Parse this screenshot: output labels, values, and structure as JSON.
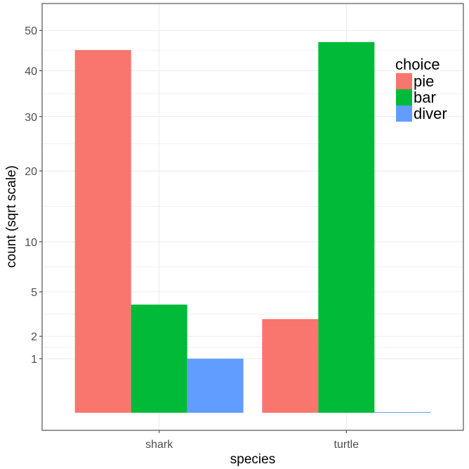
{
  "chart_data": {
    "type": "bar",
    "xlabel": "species",
    "ylabel": "count (sqrt scale)",
    "categories": [
      "shark",
      "turtle"
    ],
    "series": [
      {
        "name": "pie",
        "values": [
          45,
          3
        ],
        "color": "#F8766D"
      },
      {
        "name": "bar",
        "values": [
          4,
          47
        ],
        "color": "#00BA38"
      },
      {
        "name": "diver",
        "values": [
          1,
          0
        ],
        "color": "#619CFF"
      }
    ],
    "y_scale": "sqrt",
    "ylim": [
      0,
      51
    ],
    "y_ticks": [
      1,
      2,
      5,
      10,
      20,
      30,
      40,
      50
    ],
    "legend": {
      "title": "choice",
      "position": "top-right"
    },
    "grid": true
  }
}
